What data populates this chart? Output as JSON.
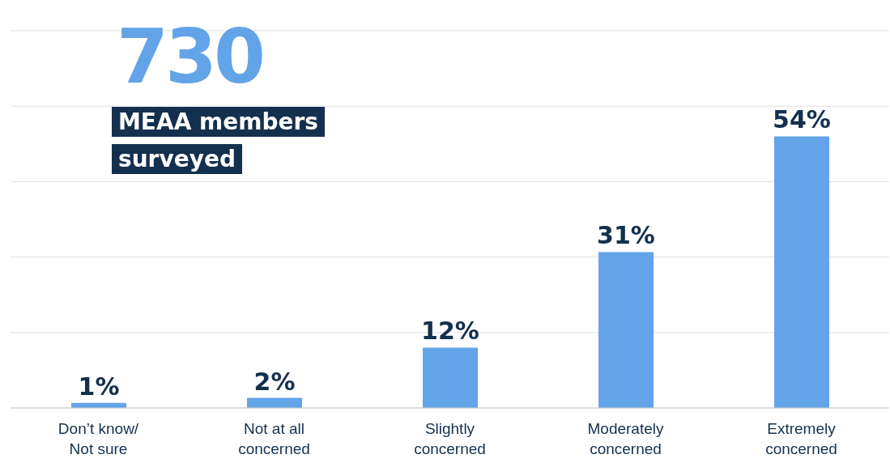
{
  "chart_data": {
    "type": "bar",
    "title": "730",
    "subtitle": "MEAA members surveyed",
    "categories": [
      "Don’t know/\nNot sure",
      "Not at all\nconcerned",
      "Slightly\nconcerned",
      "Moderately\nconcerned",
      "Extremely\nconcerned"
    ],
    "values": [
      1,
      2,
      12,
      31,
      54
    ],
    "color": "#63a4e8",
    "value_labels": [
      "1%",
      "2%",
      "12%",
      "31%",
      "54%"
    ],
    "grid": "y",
    "tick_labels": "x"
  }
}
